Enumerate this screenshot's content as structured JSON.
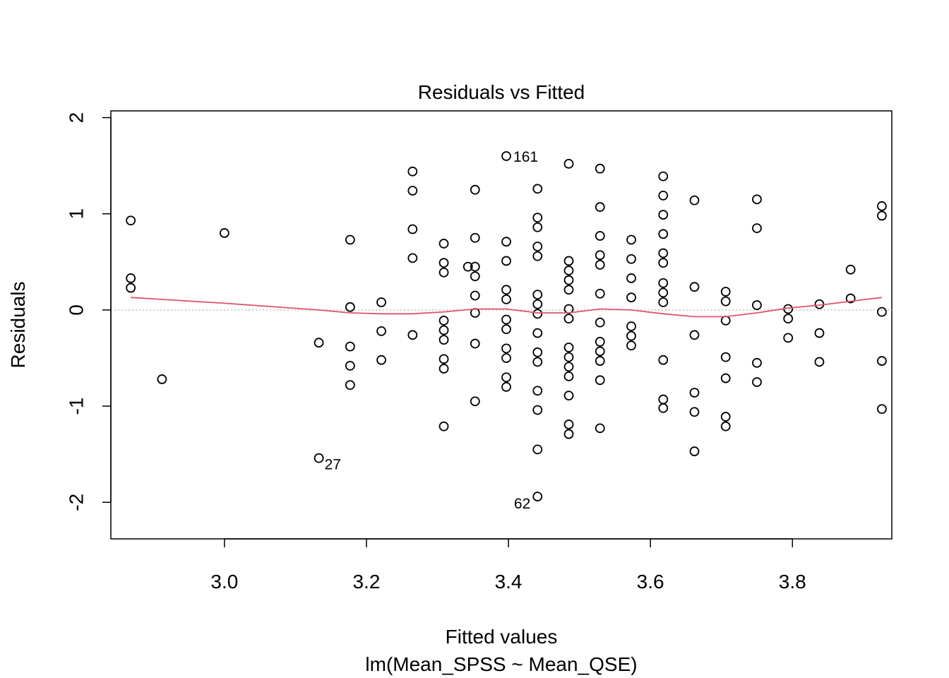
{
  "chart_data": {
    "type": "scatter",
    "title": "Residuals vs Fitted",
    "xlabel": "Fitted values",
    "subtitle": "lm(Mean_SPSS ~ Mean_QSE)",
    "ylabel": "Residuals",
    "xlim": [
      2.84,
      3.94
    ],
    "ylim": [
      -2.38,
      2.07
    ],
    "x_ticks": [
      3.0,
      3.2,
      3.4,
      3.6,
      3.8
    ],
    "x_tick_labels": [
      "3.0",
      "3.2",
      "3.4",
      "3.6",
      "3.8"
    ],
    "y_ticks": [
      -2,
      -1,
      0,
      1,
      2
    ],
    "y_tick_labels": [
      "-2",
      "-1",
      "0",
      "1",
      "2"
    ],
    "zero_line": 0,
    "points": [
      {
        "x": 2.868,
        "y": 0.93
      },
      {
        "x": 2.868,
        "y": 0.33
      },
      {
        "x": 2.868,
        "y": 0.23
      },
      {
        "x": 2.912,
        "y": -0.72
      },
      {
        "x": 3.0,
        "y": 0.8
      },
      {
        "x": 3.133,
        "y": -0.34
      },
      {
        "x": 3.133,
        "y": -1.54
      },
      {
        "x": 3.177,
        "y": 0.73
      },
      {
        "x": 3.177,
        "y": 0.03
      },
      {
        "x": 3.177,
        "y": -0.38
      },
      {
        "x": 3.177,
        "y": -0.58
      },
      {
        "x": 3.177,
        "y": -0.78
      },
      {
        "x": 3.221,
        "y": 0.08
      },
      {
        "x": 3.221,
        "y": -0.22
      },
      {
        "x": 3.221,
        "y": -0.52
      },
      {
        "x": 3.265,
        "y": 1.44
      },
      {
        "x": 3.265,
        "y": 1.24
      },
      {
        "x": 3.265,
        "y": 0.84
      },
      {
        "x": 3.265,
        "y": 0.54
      },
      {
        "x": 3.265,
        "y": -0.26
      },
      {
        "x": 3.309,
        "y": 0.69
      },
      {
        "x": 3.309,
        "y": 0.49
      },
      {
        "x": 3.309,
        "y": 0.39
      },
      {
        "x": 3.309,
        "y": -0.11
      },
      {
        "x": 3.309,
        "y": -0.21
      },
      {
        "x": 3.309,
        "y": -0.31
      },
      {
        "x": 3.309,
        "y": -0.51
      },
      {
        "x": 3.309,
        "y": -0.61
      },
      {
        "x": 3.309,
        "y": -1.21
      },
      {
        "x": 3.343,
        "y": 0.45
      },
      {
        "x": 3.353,
        "y": 1.25
      },
      {
        "x": 3.353,
        "y": 0.75
      },
      {
        "x": 3.353,
        "y": 0.45
      },
      {
        "x": 3.353,
        "y": 0.35
      },
      {
        "x": 3.353,
        "y": 0.15
      },
      {
        "x": 3.353,
        "y": -0.03
      },
      {
        "x": 3.353,
        "y": -0.35
      },
      {
        "x": 3.353,
        "y": -0.95
      },
      {
        "x": 3.397,
        "y": 1.6
      },
      {
        "x": 3.397,
        "y": 0.71
      },
      {
        "x": 3.397,
        "y": 0.51
      },
      {
        "x": 3.397,
        "y": 0.21
      },
      {
        "x": 3.397,
        "y": 0.11
      },
      {
        "x": 3.397,
        "y": -0.1
      },
      {
        "x": 3.397,
        "y": -0.2
      },
      {
        "x": 3.397,
        "y": -0.4
      },
      {
        "x": 3.397,
        "y": -0.5
      },
      {
        "x": 3.397,
        "y": -0.7
      },
      {
        "x": 3.397,
        "y": -0.8
      },
      {
        "x": 3.441,
        "y": 1.26
      },
      {
        "x": 3.441,
        "y": 0.96
      },
      {
        "x": 3.441,
        "y": 0.86
      },
      {
        "x": 3.441,
        "y": 0.66
      },
      {
        "x": 3.441,
        "y": 0.56
      },
      {
        "x": 3.441,
        "y": 0.16
      },
      {
        "x": 3.441,
        "y": 0.06
      },
      {
        "x": 3.441,
        "y": -0.04
      },
      {
        "x": 3.441,
        "y": -0.24
      },
      {
        "x": 3.441,
        "y": -0.44
      },
      {
        "x": 3.441,
        "y": -0.54
      },
      {
        "x": 3.441,
        "y": -0.84
      },
      {
        "x": 3.441,
        "y": -1.04
      },
      {
        "x": 3.441,
        "y": -1.45
      },
      {
        "x": 3.441,
        "y": -1.94
      },
      {
        "x": 3.485,
        "y": 1.52
      },
      {
        "x": 3.485,
        "y": 0.51
      },
      {
        "x": 3.485,
        "y": 0.41
      },
      {
        "x": 3.485,
        "y": 0.31
      },
      {
        "x": 3.485,
        "y": 0.21
      },
      {
        "x": 3.485,
        "y": 0.01
      },
      {
        "x": 3.485,
        "y": -0.09
      },
      {
        "x": 3.485,
        "y": -0.39
      },
      {
        "x": 3.485,
        "y": -0.49
      },
      {
        "x": 3.485,
        "y": -0.59
      },
      {
        "x": 3.485,
        "y": -0.69
      },
      {
        "x": 3.485,
        "y": -0.89
      },
      {
        "x": 3.485,
        "y": -1.19
      },
      {
        "x": 3.485,
        "y": -1.29
      },
      {
        "x": 3.529,
        "y": 1.47
      },
      {
        "x": 3.529,
        "y": 1.07
      },
      {
        "x": 3.529,
        "y": 0.77
      },
      {
        "x": 3.529,
        "y": 0.57
      },
      {
        "x": 3.529,
        "y": 0.47
      },
      {
        "x": 3.529,
        "y": 0.17
      },
      {
        "x": 3.529,
        "y": -0.13
      },
      {
        "x": 3.529,
        "y": -0.33
      },
      {
        "x": 3.529,
        "y": -0.43
      },
      {
        "x": 3.529,
        "y": -0.53
      },
      {
        "x": 3.529,
        "y": -0.73
      },
      {
        "x": 3.529,
        "y": -1.23
      },
      {
        "x": 3.573,
        "y": 0.73
      },
      {
        "x": 3.573,
        "y": 0.53
      },
      {
        "x": 3.573,
        "y": 0.33
      },
      {
        "x": 3.573,
        "y": 0.13
      },
      {
        "x": 3.573,
        "y": -0.17
      },
      {
        "x": 3.573,
        "y": -0.27
      },
      {
        "x": 3.573,
        "y": -0.37
      },
      {
        "x": 3.618,
        "y": 1.39
      },
      {
        "x": 3.618,
        "y": 1.19
      },
      {
        "x": 3.618,
        "y": 0.99
      },
      {
        "x": 3.618,
        "y": 0.79
      },
      {
        "x": 3.618,
        "y": 0.59
      },
      {
        "x": 3.618,
        "y": 0.49
      },
      {
        "x": 3.618,
        "y": 0.28
      },
      {
        "x": 3.618,
        "y": 0.18
      },
      {
        "x": 3.618,
        "y": 0.08
      },
      {
        "x": 3.618,
        "y": -0.52
      },
      {
        "x": 3.618,
        "y": -0.93
      },
      {
        "x": 3.618,
        "y": -1.02
      },
      {
        "x": 3.662,
        "y": 1.14
      },
      {
        "x": 3.662,
        "y": 0.24
      },
      {
        "x": 3.662,
        "y": -0.26
      },
      {
        "x": 3.662,
        "y": -0.86
      },
      {
        "x": 3.662,
        "y": -1.06
      },
      {
        "x": 3.662,
        "y": -1.47
      },
      {
        "x": 3.706,
        "y": 0.19
      },
      {
        "x": 3.706,
        "y": 0.09
      },
      {
        "x": 3.706,
        "y": -0.11
      },
      {
        "x": 3.706,
        "y": -0.49
      },
      {
        "x": 3.706,
        "y": -0.71
      },
      {
        "x": 3.706,
        "y": -1.11
      },
      {
        "x": 3.706,
        "y": -1.21
      },
      {
        "x": 3.75,
        "y": 1.15
      },
      {
        "x": 3.75,
        "y": 0.85
      },
      {
        "x": 3.75,
        "y": 0.05
      },
      {
        "x": 3.75,
        "y": -0.55
      },
      {
        "x": 3.75,
        "y": -0.75
      },
      {
        "x": 3.794,
        "y": 0.01
      },
      {
        "x": 3.794,
        "y": -0.09
      },
      {
        "x": 3.794,
        "y": -0.29
      },
      {
        "x": 3.838,
        "y": 0.06
      },
      {
        "x": 3.838,
        "y": -0.24
      },
      {
        "x": 3.838,
        "y": -0.54
      },
      {
        "x": 3.882,
        "y": 0.42
      },
      {
        "x": 3.882,
        "y": 0.12
      },
      {
        "x": 3.926,
        "y": 1.08
      },
      {
        "x": 3.926,
        "y": 0.98
      },
      {
        "x": 3.926,
        "y": -0.02
      },
      {
        "x": 3.926,
        "y": -0.53
      },
      {
        "x": 3.926,
        "y": -1.03
      }
    ],
    "smooth_line": {
      "color": "#DF536B",
      "x": [
        2.868,
        3.0,
        3.133,
        3.177,
        3.221,
        3.265,
        3.309,
        3.353,
        3.397,
        3.441,
        3.485,
        3.529,
        3.573,
        3.618,
        3.662,
        3.706,
        3.75,
        3.794,
        3.838,
        3.882,
        3.926
      ],
      "y": [
        0.13,
        0.07,
        0.0,
        -0.03,
        -0.04,
        -0.04,
        -0.02,
        0.01,
        0.01,
        -0.03,
        -0.03,
        0.01,
        0.0,
        -0.04,
        -0.07,
        -0.07,
        -0.03,
        0.02,
        0.05,
        0.09,
        0.13
      ]
    },
    "labeled_points": [
      {
        "x": 3.397,
        "y": 1.6,
        "label": "161",
        "pos": "right"
      },
      {
        "x": 3.133,
        "y": -1.54,
        "label": "27",
        "pos": "below-right"
      },
      {
        "x": 3.441,
        "y": -1.94,
        "label": "62",
        "pos": "left"
      }
    ],
    "colors": {
      "points": "#000000",
      "smooth": "#DF536B",
      "zero_line": "#BEBEBE"
    }
  }
}
